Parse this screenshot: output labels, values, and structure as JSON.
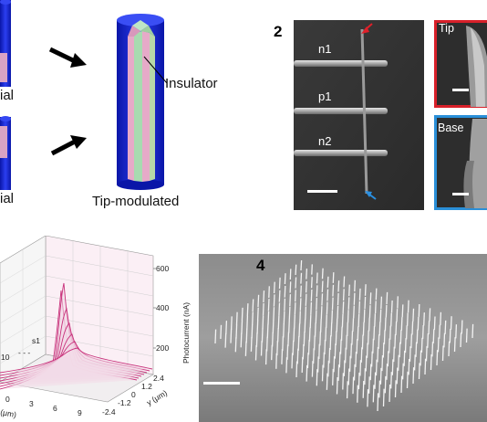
{
  "panel1": {
    "partial_label_top": "ial",
    "partial_label_bottom": "ial",
    "insulator_label": "Insulator",
    "tip_modulated_label": "Tip-modulated"
  },
  "panel2": {
    "number": "2",
    "electrodes": [
      "n1",
      "p1",
      "n2"
    ],
    "inset_tip_label": "Tip",
    "inset_base_label": "Base",
    "arrow_top_color": "#e0202a",
    "arrow_bottom_color": "#2a8fe0",
    "inset_tip_border": "#d8202a",
    "inset_base_border": "#2a8fd8"
  },
  "panel3": {
    "z_axis_label": "Photocurrent (nA)",
    "z_ticks": [
      "600",
      "400",
      "200"
    ],
    "y_axis_label": "y (μm)",
    "y_ticks": [
      "2.4",
      "1.2",
      "0",
      "-1.2",
      "-2.4"
    ],
    "x_axis_label": "(μm)",
    "x_ticks": [
      "0",
      "3",
      "6",
      "9"
    ],
    "curve_labels": [
      "10",
      "s1"
    ]
  },
  "panel4": {
    "number": "4"
  },
  "colors": {
    "nanowire_blue": "#1d2fd8",
    "nanowire_pink": "#e5a9c8",
    "nanowire_green": "#9fd7a8",
    "curve_magenta": "#c8307a"
  }
}
